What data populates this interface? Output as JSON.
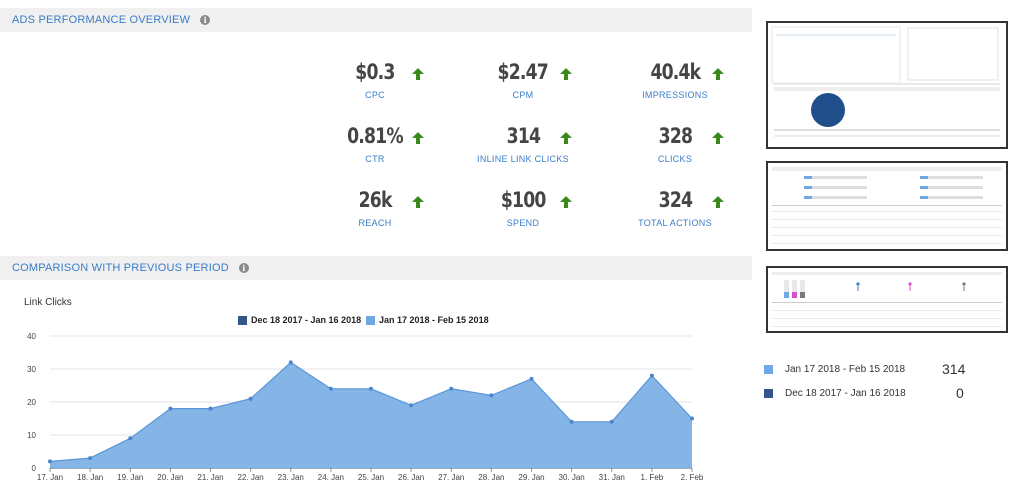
{
  "sections": {
    "overview_title": "ADS PERFORMANCE OVERVIEW",
    "comparison_title": "COMPARISON WITH PREVIOUS PERIOD",
    "info_glyph": "i"
  },
  "metrics": [
    {
      "value": "$0.3",
      "label": "CPC"
    },
    {
      "value": "$2.47",
      "label": "CPM"
    },
    {
      "value": "40.4k",
      "label": "IMPRESSIONS"
    },
    {
      "value": "0.81%",
      "label": "CTR"
    },
    {
      "value": "314",
      "label": "INLINE LINK CLICKS"
    },
    {
      "value": "328",
      "label": "CLICKS"
    },
    {
      "value": "26k",
      "label": "REACH"
    },
    {
      "value": "$100",
      "label": "SPEND"
    },
    {
      "value": "324",
      "label": "TOTAL ACTIONS"
    }
  ],
  "trend_icon": "arrow-up-icon",
  "colors": {
    "accent": "#3a7cc7",
    "arrow": "#3a8a1e",
    "current": "#6fa8e4",
    "previous": "#34568b"
  },
  "side_legend": [
    {
      "label": "Jan 17 2018 - Feb 15 2018",
      "value": "314"
    },
    {
      "label": "Dec 18 2017 - Jan 16 2018",
      "value": "0"
    }
  ],
  "chart_data": {
    "type": "area",
    "title": "Link Clicks",
    "xlabel": "",
    "ylabel": "",
    "categories": [
      "17. Jan",
      "18. Jan",
      "19. Jan",
      "20. Jan",
      "21. Jan",
      "22. Jan",
      "23. Jan",
      "24. Jan",
      "25. Jan",
      "26. Jan",
      "27. Jan",
      "28. Jan",
      "29. Jan",
      "30. Jan",
      "31. Jan",
      "1. Feb",
      "2. Feb"
    ],
    "series": [
      {
        "name": "Dec 18 2017 - Jan 16 2018",
        "values": [
          0,
          0,
          0,
          0,
          0,
          0,
          0,
          0,
          0,
          0,
          0,
          0,
          0,
          0,
          0,
          0,
          0
        ]
      },
      {
        "name": "Jan 17 2018 - Feb 15 2018",
        "values": [
          2,
          3,
          9,
          18,
          18,
          21,
          32,
          24,
          24,
          19,
          24,
          22,
          27,
          14,
          14,
          28,
          15
        ]
      }
    ],
    "ylim": [
      0,
      40
    ],
    "yticks": [
      0,
      10,
      20,
      30,
      40
    ],
    "grid": true,
    "legend": "top-center"
  }
}
